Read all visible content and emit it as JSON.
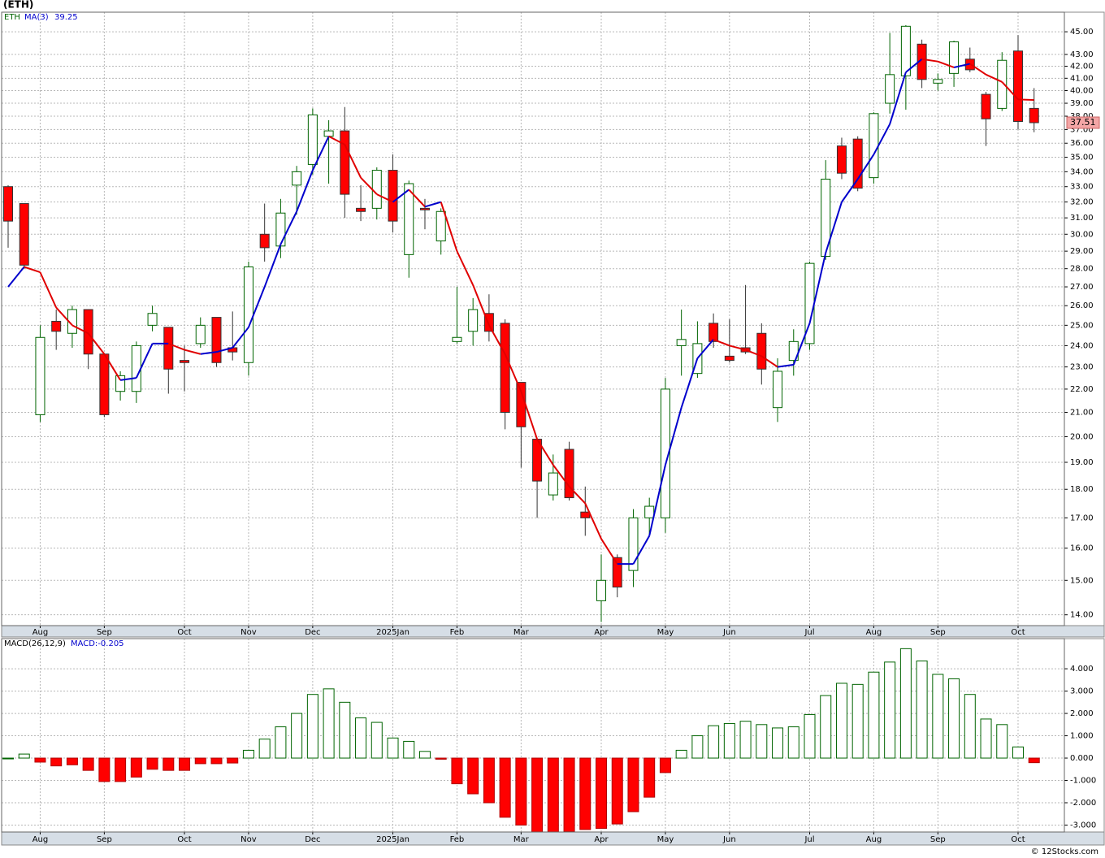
{
  "chart_data": [
    {
      "type": "candlestick",
      "title": "(ETH)",
      "symbol": "ETH",
      "categories": [
        null,
        null,
        "Aug",
        null,
        null,
        null,
        "Sep",
        null,
        null,
        null,
        null,
        "Oct",
        null,
        null,
        null,
        "Nov",
        null,
        null,
        null,
        "Dec",
        null,
        null,
        null,
        null,
        "2025Jan",
        null,
        null,
        null,
        "Feb",
        null,
        null,
        null,
        "Mar",
        null,
        null,
        null,
        null,
        "Apr",
        null,
        null,
        null,
        "May",
        null,
        null,
        null,
        "Jun",
        null,
        null,
        null,
        null,
        "Jul",
        null,
        null,
        null,
        "Aug",
        null,
        null,
        null,
        "Sep",
        null,
        null,
        null,
        null,
        "Oct",
        null
      ],
      "open": [
        33.0,
        31.9,
        20.9,
        25.2,
        24.6,
        25.8,
        23.6,
        21.9,
        21.9,
        25.0,
        24.9,
        23.3,
        24.1,
        25.4,
        23.9,
        23.2,
        30.0,
        29.3,
        33.1,
        34.5,
        36.5,
        36.9,
        31.6,
        31.6,
        34.1,
        28.8,
        31.6,
        29.6,
        24.2,
        24.7,
        25.6,
        25.1,
        22.3,
        19.9,
        17.8,
        19.5,
        17.2,
        14.4,
        15.7,
        15.3,
        17.0,
        17.0,
        24.0,
        22.7,
        25.1,
        23.5,
        23.9,
        24.6,
        21.2,
        23.3,
        24.1,
        28.7,
        35.8,
        36.3,
        33.6,
        39.0,
        41.2,
        43.9,
        40.6,
        41.4,
        42.6,
        39.7,
        38.6,
        43.3,
        38.6
      ],
      "high": [
        33.1,
        31.9,
        25.0,
        25.8,
        26.0,
        25.8,
        23.6,
        22.8,
        24.2,
        26.0,
        24.9,
        24.0,
        25.4,
        25.4,
        25.7,
        28.4,
        31.9,
        32.2,
        34.4,
        38.6,
        37.7,
        38.7,
        33.1,
        34.3,
        35.2,
        33.4,
        32.2,
        31.6,
        27.0,
        26.4,
        26.6,
        25.3,
        22.3,
        19.9,
        19.3,
        19.8,
        18.1,
        15.8,
        15.8,
        17.3,
        17.7,
        22.5,
        25.8,
        25.2,
        25.6,
        25.3,
        27.1,
        25.1,
        23.4,
        24.8,
        28.4,
        34.8,
        36.4,
        36.5,
        38.3,
        44.9,
        45.6,
        44.3,
        41.4,
        44.2,
        43.6,
        39.9,
        43.2,
        44.7,
        40.2
      ],
      "low": [
        29.2,
        28.0,
        20.6,
        23.8,
        23.9,
        22.9,
        20.8,
        21.5,
        21.4,
        24.7,
        21.8,
        21.9,
        23.9,
        23.0,
        23.3,
        22.6,
        28.4,
        28.6,
        31.2,
        33.8,
        33.2,
        31.0,
        30.8,
        30.9,
        30.1,
        27.5,
        30.3,
        28.8,
        24.1,
        24.0,
        24.2,
        20.3,
        18.8,
        17.0,
        17.6,
        17.6,
        16.4,
        13.8,
        14.5,
        14.8,
        16.4,
        16.5,
        22.6,
        22.5,
        23.9,
        23.2,
        23.6,
        22.2,
        20.6,
        22.6,
        23.8,
        28.5,
        33.5,
        32.7,
        33.2,
        38.2,
        38.5,
        40.2,
        40.0,
        40.3,
        41.5,
        35.8,
        38.4,
        37.0,
        36.8
      ],
      "close": [
        30.8,
        28.2,
        24.4,
        24.7,
        25.8,
        23.6,
        20.9,
        22.6,
        24.0,
        25.6,
        22.9,
        23.2,
        25.0,
        23.2,
        23.7,
        28.1,
        29.2,
        31.3,
        34.0,
        38.1,
        36.9,
        32.5,
        31.4,
        34.1,
        30.8,
        33.2,
        31.5,
        31.4,
        24.4,
        25.8,
        24.7,
        21.0,
        20.4,
        18.3,
        18.6,
        17.7,
        17.0,
        15.0,
        14.8,
        17.0,
        17.4,
        22.0,
        24.3,
        24.1,
        24.2,
        23.3,
        23.7,
        22.9,
        22.8,
        24.2,
        28.3,
        33.5,
        33.9,
        32.9,
        38.2,
        41.3,
        45.5,
        40.9,
        40.9,
        44.1,
        41.7,
        37.8,
        42.5,
        37.6,
        37.51
      ],
      "up_color": "#006400",
      "down_color": "#ff0000",
      "ma": {
        "name": "MA(3)",
        "rising_color": "#0000cc",
        "falling_color": "#e00000",
        "values": [
          27.0,
          28.1,
          27.8,
          25.9,
          25.0,
          24.6,
          23.6,
          22.4,
          22.5,
          24.1,
          24.1,
          23.8,
          23.6,
          23.7,
          23.9,
          24.9,
          27.0,
          29.4,
          31.4,
          34.1,
          36.5,
          35.9,
          33.6,
          32.5,
          32.0,
          32.8,
          31.7,
          32.0,
          29.0,
          27.1,
          25.0,
          23.6,
          21.9,
          19.9,
          18.9,
          18.1,
          17.5,
          16.3,
          15.5,
          15.5,
          16.4,
          18.9,
          21.2,
          23.4,
          24.3,
          24.0,
          23.8,
          23.5,
          23.0,
          23.1,
          25.1,
          28.9,
          32.0,
          33.5,
          35.2,
          37.4,
          41.5,
          42.6,
          42.4,
          41.9,
          42.2,
          41.3,
          40.7,
          39.3,
          39.25
        ]
      },
      "log_scale": true,
      "grid": true,
      "ylim": [
        13.7,
        46.8
      ],
      "yticks": [
        {
          "value": 14,
          "label": "14.00"
        },
        {
          "value": 15,
          "label": "15.00"
        },
        {
          "value": 16,
          "label": "16.00"
        },
        {
          "value": 17,
          "label": "17.00"
        },
        {
          "value": 18,
          "label": "18.00"
        },
        {
          "value": 19,
          "label": "19.00"
        },
        {
          "value": 20,
          "label": "20.00"
        },
        {
          "value": 21,
          "label": "21.00"
        },
        {
          "value": 22,
          "label": "22.00"
        },
        {
          "value": 23,
          "label": "23.00"
        },
        {
          "value": 24,
          "label": "24.00"
        },
        {
          "value": 25,
          "label": "25.00"
        },
        {
          "value": 26,
          "label": "26.00"
        },
        {
          "value": 27,
          "label": "27.00"
        },
        {
          "value": 28,
          "label": "28.00"
        },
        {
          "value": 29,
          "label": "29.00"
        },
        {
          "value": 30,
          "label": "30.00"
        },
        {
          "value": 31,
          "label": "31.00"
        },
        {
          "value": 32,
          "label": "32.00"
        },
        {
          "value": 33,
          "label": "33.00"
        },
        {
          "value": 34,
          "label": "34.00"
        },
        {
          "value": 35,
          "label": "35.00"
        },
        {
          "value": 36,
          "label": "36.00"
        },
        {
          "value": 37,
          "label": "37.00"
        },
        {
          "value": 38,
          "label": "38.00"
        },
        {
          "value": 39,
          "label": "39.00"
        },
        {
          "value": 40,
          "label": "40.00"
        },
        {
          "value": 41,
          "label": "41.00"
        },
        {
          "value": 42,
          "label": "42.00"
        },
        {
          "value": 43,
          "label": "43.00"
        },
        {
          "value": 45,
          "label": "45.00"
        }
      ]
    },
    {
      "type": "bar",
      "name": "MACD(26,12,9)",
      "value_name": "MACD:",
      "categories": [
        null,
        null,
        "Aug",
        null,
        null,
        null,
        "Sep",
        null,
        null,
        null,
        null,
        "Oct",
        null,
        null,
        null,
        "Nov",
        null,
        null,
        null,
        "Dec",
        null,
        null,
        null,
        null,
        "2025Jan",
        null,
        null,
        null,
        "Feb",
        null,
        null,
        null,
        "Mar",
        null,
        null,
        null,
        null,
        "Apr",
        null,
        null,
        null,
        "May",
        null,
        null,
        null,
        "Jun",
        null,
        null,
        null,
        null,
        "Jul",
        null,
        null,
        null,
        "Aug",
        null,
        null,
        null,
        "Sep",
        null,
        null,
        null,
        null,
        "Oct",
        null
      ],
      "values": [
        0.0,
        0.18,
        -0.18,
        -0.35,
        -0.3,
        -0.55,
        -1.05,
        -1.05,
        -0.85,
        -0.5,
        -0.55,
        -0.55,
        -0.25,
        -0.25,
        -0.22,
        0.35,
        0.85,
        1.4,
        2.0,
        2.85,
        3.1,
        2.5,
        1.8,
        1.6,
        0.9,
        0.75,
        0.3,
        -0.05,
        -1.15,
        -1.6,
        -2.0,
        -2.65,
        -3.0,
        -3.35,
        -3.35,
        -3.3,
        -3.2,
        -3.15,
        -2.95,
        -2.4,
        -1.75,
        -0.65,
        0.35,
        1.0,
        1.45,
        1.55,
        1.65,
        1.5,
        1.35,
        1.4,
        1.95,
        2.8,
        3.35,
        3.3,
        3.85,
        4.3,
        4.9,
        4.35,
        3.75,
        3.55,
        2.85,
        1.75,
        1.5,
        0.5,
        -0.205
      ],
      "positive_color": "#006400",
      "negative_color": "#ff0000",
      "grid": true,
      "ylim": [
        -3.31,
        5.35
      ],
      "yticks": [
        {
          "value": -3,
          "label": "-3.000"
        },
        {
          "value": -2,
          "label": "-2.000"
        },
        {
          "value": -1,
          "label": "-1.000"
        },
        {
          "value": 0,
          "label": "0.000"
        },
        {
          "value": 1,
          "label": "1.000"
        },
        {
          "value": 2,
          "label": "2.000"
        },
        {
          "value": 3,
          "label": "3.000"
        },
        {
          "value": 4,
          "label": "4.000"
        }
      ]
    }
  ],
  "source": "© 12Stocks.com"
}
